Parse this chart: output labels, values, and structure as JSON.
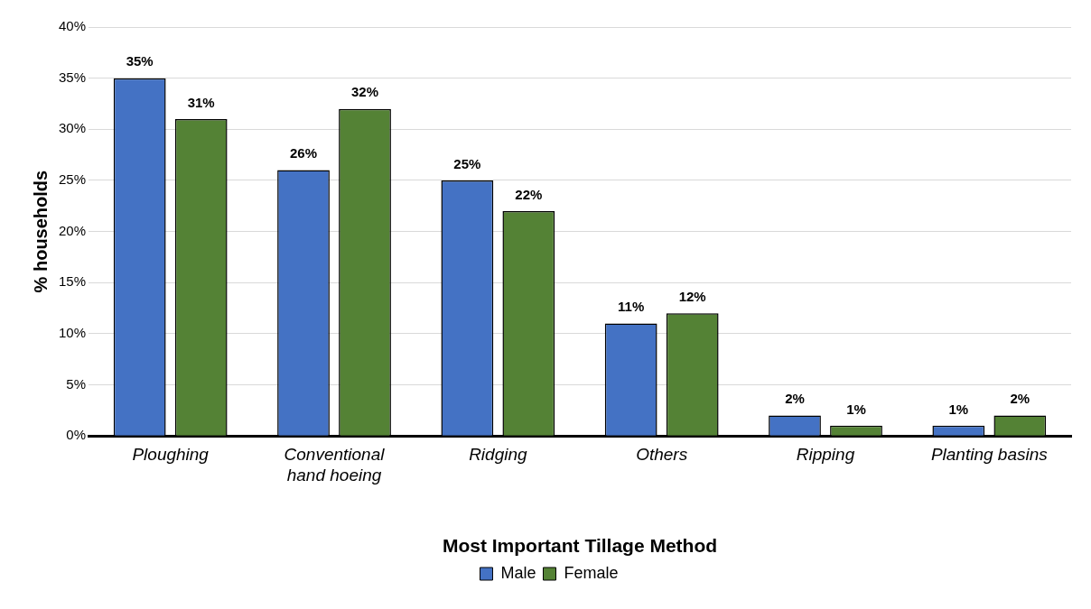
{
  "chart_data": {
    "type": "bar",
    "xlabel": "Most Important Tillage Method",
    "ylabel": "% households",
    "categories": [
      "Ploughing",
      "Conventional hand hoeing",
      "Ridging",
      "Others",
      "Ripping",
      "Planting basins"
    ],
    "series": [
      {
        "name": "Male",
        "color": "#4472c4",
        "values": [
          35,
          26,
          25,
          11,
          2,
          1
        ],
        "value_labels": [
          "35%",
          "26%",
          "25%",
          "11%",
          "2%",
          "1%"
        ]
      },
      {
        "name": "Female",
        "color": "#548235",
        "values": [
          31,
          32,
          22,
          12,
          1,
          2
        ],
        "value_labels": [
          "31%",
          "32%",
          "22%",
          "12%",
          "1%",
          "2%"
        ]
      }
    ],
    "ylim": [
      0,
      40
    ],
    "yticks": [
      {
        "value": 0,
        "label": "0%"
      },
      {
        "value": 5,
        "label": "5%"
      },
      {
        "value": 10,
        "label": "10%"
      },
      {
        "value": 15,
        "label": "15%"
      },
      {
        "value": 20,
        "label": "20%"
      },
      {
        "value": 25,
        "label": "25%"
      },
      {
        "value": 30,
        "label": "30%"
      },
      {
        "value": 35,
        "label": "35%"
      },
      {
        "value": 40,
        "label": "40%"
      }
    ],
    "grid": "y",
    "legend": "bottom"
  }
}
